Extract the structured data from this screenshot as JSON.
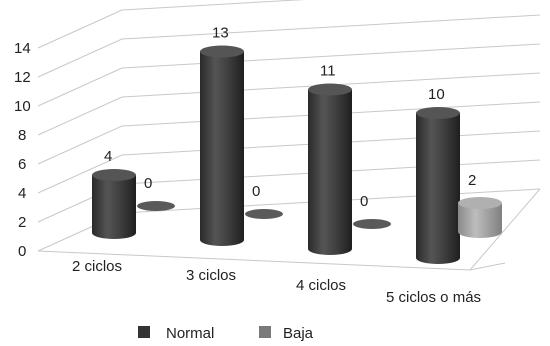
{
  "chart_data": {
    "type": "bar",
    "style": "3d-cylinder",
    "categories": [
      "2 ciclos",
      "3 ciclos",
      "4 ciclos",
      "5 ciclos o más"
    ],
    "series": [
      {
        "name": "Normal",
        "values": [
          4,
          13,
          11,
          10
        ],
        "color": "#3a3a3a"
      },
      {
        "name": "Baja",
        "values": [
          0,
          0,
          0,
          2
        ],
        "color": "#9a9a9a"
      }
    ],
    "y_ticks": [
      "0",
      "2",
      "4",
      "6",
      "8",
      "10",
      "12",
      "14"
    ],
    "ylim": [
      0,
      14
    ],
    "grid": true,
    "legend_position": "bottom-center",
    "title": "",
    "xlabel": "",
    "ylabel": ""
  }
}
